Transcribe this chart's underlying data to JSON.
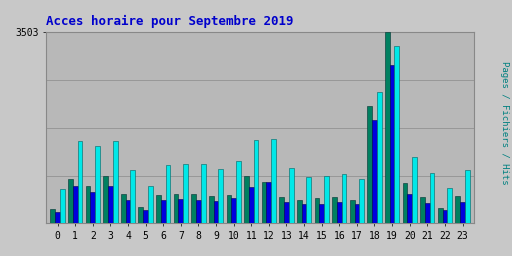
{
  "title": "Acces horaire pour Septembre 2019",
  "ylabel": "Pages / Fichiers / Hits",
  "xlabel_values": [
    0,
    1,
    2,
    3,
    4,
    5,
    6,
    7,
    8,
    9,
    10,
    11,
    12,
    13,
    14,
    15,
    16,
    17,
    18,
    19,
    20,
    21,
    22,
    23
  ],
  "ymax": 3503,
  "ytick_label": "3503",
  "colors": {
    "pages": "#008060",
    "fichiers": "#0000dd",
    "hits": "#00e8e8"
  },
  "background_color": "#c8c8c8",
  "plot_bg_color": "#b8b8b8",
  "title_color": "#0000cc",
  "ylabel_color": "#008080",
  "pages": [
    270,
    820,
    680,
    860,
    530,
    300,
    520,
    530,
    530,
    510,
    520,
    870,
    760,
    490,
    430,
    470,
    480,
    420,
    2150,
    3503,
    730,
    490,
    280,
    510
  ],
  "fichiers": [
    200,
    680,
    580,
    680,
    420,
    250,
    420,
    440,
    430,
    410,
    460,
    660,
    750,
    400,
    360,
    360,
    390,
    350,
    1900,
    2900,
    530,
    380,
    250,
    400
  ],
  "hits": [
    620,
    1500,
    1420,
    1500,
    970,
    680,
    1070,
    1080,
    1080,
    990,
    1140,
    1530,
    1540,
    1010,
    840,
    860,
    900,
    820,
    2400,
    3250,
    1220,
    920,
    640,
    980
  ]
}
